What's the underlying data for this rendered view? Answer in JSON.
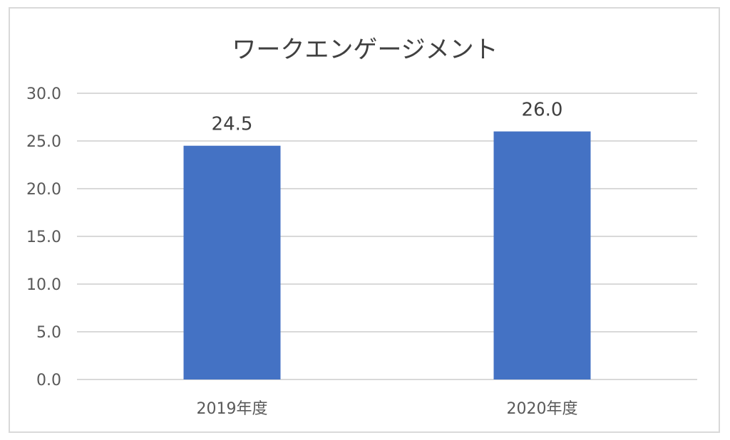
{
  "chart_data": {
    "type": "bar",
    "title": "ワークエンゲージメント",
    "categories": [
      "2019年度",
      "2020年度"
    ],
    "values": [
      24.5,
      26.0
    ],
    "value_labels": [
      "24.5",
      "26.0"
    ],
    "ylim": [
      0,
      30
    ],
    "yticks": [
      "0.0",
      "5.0",
      "10.0",
      "15.0",
      "20.0",
      "25.0",
      "30.0"
    ],
    "xlabel": "",
    "ylabel": "",
    "grid": true,
    "legend": "none",
    "colors": {
      "bar": "#4472c4",
      "grid": "#d9d9d9",
      "text": "#595959"
    }
  }
}
